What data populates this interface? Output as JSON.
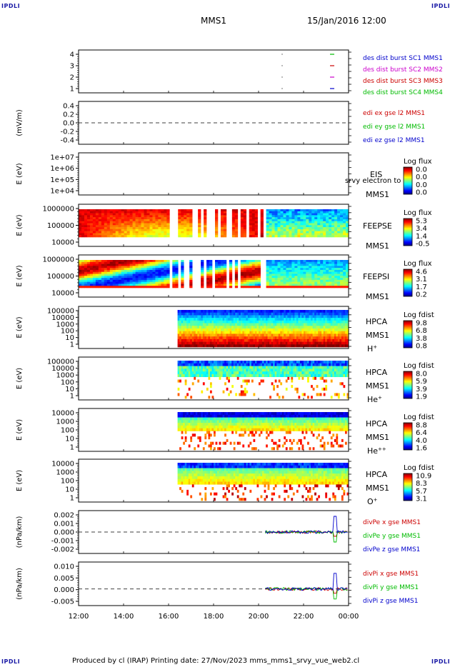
{
  "header": {
    "corner_label": "IPDLI",
    "spacecraft": "MMS1",
    "datetime": "15/Jan/2016 12:00"
  },
  "footer": {
    "text": "Produced by cl (IRAP)   Printing date: 27/Nov/2023   mms_mms1_srvy_vue_web2.cl"
  },
  "colors": {
    "mms1": "#0000cc",
    "mms2": "#cc00cc",
    "mms3": "#cc0000",
    "mms4": "#00bb00",
    "x_comp": "#cc0000",
    "y_comp": "#00bb00",
    "z_comp": "#0000cc"
  },
  "time_axis": {
    "ticks": [
      "12:00",
      "14:00",
      "16:00",
      "18:00",
      "20:00",
      "22:00",
      "00:00"
    ],
    "range_hours": [
      12,
      24
    ]
  },
  "chart_data": [
    {
      "id": "burst",
      "type": "scatter",
      "yticks": [
        "4",
        "3",
        "2",
        "1"
      ],
      "legend": [
        {
          "text": "des dist burst SC1 MMS1",
          "color": "#0000cc"
        },
        {
          "text": "des dist burst SC2 MMS2",
          "color": "#cc00cc"
        },
        {
          "text": "des dist burst SC3 MMS3",
          "color": "#cc0000"
        },
        {
          "text": "des dist burst SC4 MMS4",
          "color": "#00bb00"
        }
      ]
    },
    {
      "id": "efield",
      "type": "line",
      "ylabel": "(mV/m)",
      "yticks": [
        "0.4",
        "0.2",
        "0.0",
        "-0.2",
        "-0.4"
      ],
      "ylim": [
        -0.45,
        0.45
      ],
      "legend": [
        {
          "text": "edi ex gse l2 MMS1",
          "color": "#cc0000"
        },
        {
          "text": "edi ey gse l2 MMS1",
          "color": "#00bb00"
        },
        {
          "text": "edi ez gse l2 MMS1",
          "color": "#0000cc"
        }
      ]
    },
    {
      "id": "eis",
      "type": "heatmap",
      "ylabel": "E (eV)",
      "yticks": [
        "1e+07",
        "1e+06",
        "1e+05",
        "1e+04"
      ],
      "instrument": [
        "EIS",
        "MMS1"
      ],
      "overlay_text": "srvy electron to",
      "cbar_title": "Log flux",
      "cbar_ticks": [
        "0.0",
        "0.0",
        "0.0",
        "0.0"
      ]
    },
    {
      "id": "feepse",
      "type": "heatmap",
      "ylabel": "E (eV)",
      "yticks": [
        "1000000",
        "100000",
        "10000"
      ],
      "instrument": [
        "FEEPSE",
        "MMS1"
      ],
      "cbar_title": "Log flux",
      "cbar_ticks": [
        "5.3",
        "3.4",
        "1.4",
        "-0.5"
      ]
    },
    {
      "id": "feepsi",
      "type": "heatmap",
      "ylabel": "E (eV)",
      "yticks": [
        "1000000",
        "100000",
        "10000"
      ],
      "instrument": [
        "FEEPSI",
        "MMS1"
      ],
      "cbar_title": "Log flux",
      "cbar_ticks": [
        "4.6",
        "3.1",
        "1.7",
        "0.2"
      ]
    },
    {
      "id": "hpca_h",
      "type": "heatmap",
      "ylabel": "E (eV)",
      "yticks": [
        "100000",
        "10000",
        "1000",
        "100",
        "10",
        "1"
      ],
      "instrument": [
        "HPCA",
        "MMS1"
      ],
      "species": "H",
      "species_sup": "+",
      "cbar_title": "Log fdist",
      "cbar_ticks": [
        "9.8",
        "6.8",
        "3.8",
        "0.8"
      ]
    },
    {
      "id": "hpca_he",
      "type": "heatmap",
      "ylabel": "E (eV)",
      "yticks": [
        "100000",
        "10000",
        "1000",
        "100",
        "10",
        "1"
      ],
      "instrument": [
        "HPCA",
        "MMS1"
      ],
      "species": "He",
      "species_sup": "+",
      "cbar_title": "Log fdist",
      "cbar_ticks": [
        "8.0",
        "5.9",
        "3.9",
        "1.9"
      ]
    },
    {
      "id": "hpca_hepp",
      "type": "heatmap",
      "ylabel": "E (eV)",
      "yticks": [
        "10000",
        "1000",
        "100",
        "10",
        "1"
      ],
      "instrument": [
        "HPCA",
        "MMS1"
      ],
      "species": "He",
      "species_sup": "++",
      "cbar_title": "Log fdist",
      "cbar_ticks": [
        "8.8",
        "6.4",
        "4.0",
        "1.6"
      ]
    },
    {
      "id": "hpca_o",
      "type": "heatmap",
      "ylabel": "E (eV)",
      "yticks": [
        "10000",
        "1000",
        "100",
        "10",
        "1"
      ],
      "instrument": [
        "HPCA",
        "MMS1"
      ],
      "species": "O",
      "species_sup": "+",
      "cbar_title": "Log fdist",
      "cbar_ticks": [
        "10.9",
        "8.3",
        "5.7",
        "3.1"
      ]
    },
    {
      "id": "divpe",
      "type": "line",
      "ylabel": "(nPa/km)",
      "yticks": [
        "0.002",
        "0.001",
        "0.000",
        "-0.001",
        "-0.002"
      ],
      "ylim": [
        -0.0027,
        0.0027
      ],
      "legend": [
        {
          "text": "divPe x gse MMS1",
          "color": "#cc0000"
        },
        {
          "text": "divPe y gse MMS1",
          "color": "#00bb00"
        },
        {
          "text": "divPe z gse MMS1",
          "color": "#0000cc"
        }
      ]
    },
    {
      "id": "divpi",
      "type": "line",
      "ylabel": "(nPa/km)",
      "yticks": [
        "0.010",
        "0.005",
        "0.000",
        "-0.005"
      ],
      "ylim": [
        -0.008,
        0.013
      ],
      "legend": [
        {
          "text": "divPi x gse MMS1",
          "color": "#cc0000"
        },
        {
          "text": "divPi y gse MMS1",
          "color": "#00bb00"
        },
        {
          "text": "divPi z gse MMS1",
          "color": "#0000cc"
        }
      ]
    }
  ]
}
